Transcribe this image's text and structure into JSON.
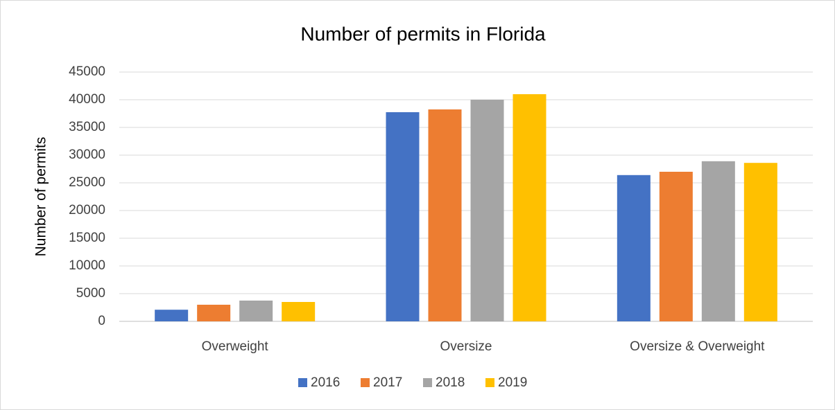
{
  "chart_data": {
    "type": "bar",
    "title": "Number of permits in Florida",
    "y_label": "Number of permits",
    "categories": [
      "Overweight",
      "Oversize",
      "Oversize & Overweight"
    ],
    "series": [
      {
        "name": "2016",
        "color": "#4472c4",
        "values": [
          2100,
          37750,
          26400
        ]
      },
      {
        "name": "2017",
        "color": "#ed7d31",
        "values": [
          3000,
          38250,
          27000
        ]
      },
      {
        "name": "2018",
        "color": "#a5a5a5",
        "values": [
          3750,
          40000,
          28900
        ]
      },
      {
        "name": "2019",
        "color": "#ffc000",
        "values": [
          3500,
          41000,
          28600
        ]
      }
    ],
    "ylim": [
      0,
      45000
    ],
    "yticks": [
      0,
      5000,
      10000,
      15000,
      20000,
      25000,
      30000,
      35000,
      40000,
      45000
    ],
    "grid": true,
    "legend": "bottom"
  }
}
